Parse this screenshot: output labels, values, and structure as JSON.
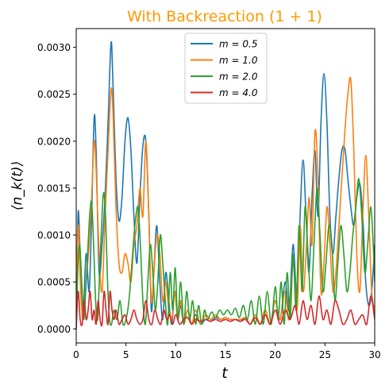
{
  "chart_data": {
    "type": "line",
    "title": "With Backreaction (1 + 1)",
    "title_color": "#ff9900",
    "xlabel": "t",
    "ylabel": "⟨n_k(t)⟩",
    "xlim": [
      0,
      30
    ],
    "ylim": [
      -0.00015,
      0.0032
    ],
    "xticks": [
      0,
      5,
      10,
      15,
      20,
      25,
      30
    ],
    "xtick_labels": [
      "0",
      "5",
      "10",
      "15",
      "20",
      "25",
      "30"
    ],
    "yticks": [
      0.0,
      0.0005,
      0.001,
      0.0015,
      0.002,
      0.0025,
      0.003
    ],
    "ytick_labels": [
      "0.0000",
      "0.0005",
      "0.0010",
      "0.0015",
      "0.0020",
      "0.0025",
      "0.0030"
    ],
    "grid": false,
    "legend_position": "top-center",
    "series": [
      {
        "name": "m = 0.5",
        "color": "#1f77b4",
        "x": [
          0,
          0.2,
          0.45,
          0.7,
          1.0,
          1.3,
          1.55,
          1.8,
          2.0,
          2.3,
          2.6,
          2.9,
          3.2,
          3.5,
          3.7,
          4.0,
          4.3,
          4.6,
          4.9,
          5.2,
          5.5,
          5.8,
          6.1,
          6.4,
          6.7,
          7.0,
          7.3,
          7.55,
          7.8,
          8.1,
          8.4,
          8.7,
          9.0,
          9.3,
          9.6,
          9.9,
          10.2,
          10.5,
          10.8,
          11.2,
          11.6,
          12.0,
          12.5,
          13.0,
          13.5,
          14.0,
          14.5,
          15.0,
          15.5,
          16.0,
          16.5,
          17.0,
          17.5,
          18.0,
          18.5,
          19.0,
          19.5,
          20.0,
          20.5,
          21.0,
          21.4,
          21.8,
          22.2,
          22.5,
          22.8,
          23.1,
          23.4,
          23.7,
          24.0,
          24.3,
          24.6,
          24.9,
          25.2,
          25.5,
          25.8,
          26.1,
          26.4,
          26.7,
          27.0,
          27.3,
          27.6,
          27.9,
          28.2,
          28.5,
          28.8,
          29.1,
          29.4,
          29.7,
          30.0
        ],
        "y": [
          0.0,
          0.00125,
          0.0006,
          0.0002,
          0.0008,
          0.0004,
          0.0012,
          0.00225,
          0.0019,
          0.0006,
          0.0009,
          0.0014,
          0.0022,
          0.00305,
          0.0026,
          0.0016,
          0.00115,
          0.0014,
          0.002,
          0.00225,
          0.0019,
          0.0012,
          0.0007,
          0.0014,
          0.00195,
          0.002,
          0.0012,
          0.0002,
          0.0006,
          0.0011,
          0.0005,
          0.0001,
          0.0006,
          0.0003,
          5e-05,
          0.0004,
          0.0001,
          0.00025,
          5e-05,
          0.0002,
          5e-05,
          0.00015,
          5e-05,
          0.0001,
          8e-05,
          0.00012,
          0.0001,
          0.00012,
          0.0001,
          0.0001,
          8e-05,
          0.00012,
          5e-05,
          0.00015,
          5e-05,
          0.0002,
          5e-05,
          0.0003,
          0.0001,
          0.0005,
          0.0002,
          0.0009,
          0.0003,
          0.0012,
          0.0018,
          0.0012,
          0.0006,
          0.0014,
          0.0019,
          0.0012,
          0.0022,
          0.00272,
          0.0022,
          0.0012,
          0.0008,
          0.0012,
          0.0016,
          0.0019,
          0.00192,
          0.0016,
          0.0013,
          0.0011,
          0.0014,
          0.00155,
          0.0012,
          0.0005,
          0.00025,
          0.0004,
          0.0009
        ]
      },
      {
        "name": "m = 1.0",
        "color": "#ff7f0e",
        "x": [
          0,
          0.2,
          0.45,
          0.7,
          1.0,
          1.3,
          1.55,
          1.8,
          2.0,
          2.3,
          2.6,
          2.9,
          3.2,
          3.5,
          3.7,
          4.0,
          4.3,
          4.6,
          4.9,
          5.2,
          5.5,
          5.8,
          6.1,
          6.4,
          6.7,
          7.0,
          7.3,
          7.55,
          7.8,
          8.1,
          8.4,
          8.7,
          9.0,
          9.3,
          9.6,
          9.9,
          10.2,
          10.5,
          10.8,
          11.2,
          11.6,
          12.0,
          12.5,
          13.0,
          13.5,
          14.0,
          14.5,
          15.0,
          15.5,
          16.0,
          16.5,
          17.0,
          17.5,
          18.0,
          18.5,
          19.0,
          19.5,
          20.0,
          20.5,
          21.0,
          21.4,
          21.8,
          22.2,
          22.5,
          22.8,
          23.1,
          23.4,
          23.7,
          24.0,
          24.3,
          24.6,
          24.9,
          25.2,
          25.5,
          25.8,
          26.1,
          26.4,
          26.7,
          27.0,
          27.3,
          27.6,
          27.9,
          28.2,
          28.5,
          28.8,
          29.1,
          29.4,
          29.7,
          30.0
        ],
        "y": [
          0.0,
          0.0011,
          0.0004,
          0.0001,
          0.0005,
          0.0009,
          0.0014,
          0.002,
          0.0017,
          0.0008,
          0.0004,
          0.0012,
          0.0019,
          0.00255,
          0.0023,
          0.0013,
          0.0007,
          0.0006,
          0.0008,
          0.0007,
          0.0005,
          0.0009,
          0.0011,
          0.0015,
          0.0012,
          0.002,
          0.0012,
          0.0003,
          0.0006,
          0.001,
          0.0008,
          0.0003,
          0.0005,
          0.0002,
          0.0001,
          0.0004,
          0.0001,
          0.0003,
          5e-05,
          0.0002,
          5e-05,
          0.0002,
          5e-05,
          0.00015,
          0.0001,
          0.00015,
          0.0001,
          0.00012,
          0.0001,
          0.0001,
          0.0001,
          0.00012,
          5e-05,
          0.00015,
          5e-05,
          0.0002,
          5e-05,
          0.0003,
          0.0001,
          0.0004,
          0.0001,
          0.0007,
          0.0002,
          0.0011,
          0.0004,
          0.0008,
          0.0014,
          0.0009,
          0.0021,
          0.0016,
          0.0004,
          0.0007,
          0.0013,
          0.0009,
          0.0004,
          0.0006,
          0.0011,
          0.0016,
          0.0021,
          0.0025,
          0.00265,
          0.0019,
          0.0008,
          0.0004,
          0.0012,
          0.00185,
          0.0012,
          0.0004,
          0.0002
        ]
      },
      {
        "name": "m = 2.0",
        "color": "#2ca02c",
        "x": [
          0,
          0.15,
          0.35,
          0.55,
          0.75,
          0.95,
          1.15,
          1.35,
          1.55,
          1.75,
          1.95,
          2.15,
          2.35,
          2.55,
          2.75,
          2.95,
          3.15,
          3.35,
          3.55,
          3.8,
          4.1,
          4.4,
          4.7,
          5.0,
          5.3,
          5.6,
          5.9,
          6.2,
          6.45,
          6.7,
          6.95,
          7.2,
          7.45,
          7.7,
          7.95,
          8.2,
          8.45,
          8.7,
          8.95,
          9.2,
          9.45,
          9.7,
          9.95,
          10.2,
          10.5,
          10.8,
          11.1,
          11.4,
          11.7,
          12.0,
          12.3,
          12.6,
          12.9,
          13.2,
          13.6,
          14.0,
          14.4,
          14.8,
          15.2,
          15.6,
          16.0,
          16.4,
          16.8,
          17.2,
          17.6,
          18.0,
          18.4,
          18.8,
          19.2,
          19.6,
          20.0,
          20.3,
          20.6,
          20.9,
          21.2,
          21.5,
          21.8,
          22.1,
          22.4,
          22.7,
          23.0,
          23.3,
          23.6,
          23.9,
          24.2,
          24.5,
          24.8,
          25.1,
          25.4,
          25.7,
          26.0,
          26.3,
          26.6,
          26.9,
          27.2,
          27.5,
          27.8,
          28.1,
          28.4,
          28.7,
          29.0,
          29.3,
          29.6,
          29.85,
          30.0
        ],
        "y": [
          0.0,
          0.0006,
          0.0009,
          0.0005,
          0.0001,
          0.0004,
          0.0008,
          0.0012,
          0.00135,
          0.0009,
          0.0003,
          0.0001,
          0.0006,
          0.0011,
          0.00145,
          0.0012,
          0.0005,
          0.0001,
          5e-05,
          0.0002,
          0.0001,
          0.0003,
          5e-05,
          0.0001,
          0.0003,
          0.0007,
          0.0011,
          0.0013,
          0.0009,
          0.0003,
          5e-05,
          0.0005,
          0.0009,
          0.0006,
          0.0002,
          0.0005,
          0.001,
          0.0007,
          0.0003,
          5e-05,
          0.0006,
          0.0002,
          0.00065,
          0.0001,
          0.0005,
          5e-05,
          0.0004,
          0.0001,
          0.0003,
          5e-05,
          0.00025,
          5e-05,
          0.0002,
          0.0001,
          0.00018,
          0.00012,
          0.0002,
          0.00015,
          0.0002,
          0.00015,
          0.00022,
          0.00012,
          0.00025,
          0.0001,
          0.0003,
          5e-05,
          0.00035,
          5e-05,
          0.0004,
          5e-05,
          0.00045,
          0.0001,
          0.0005,
          5e-05,
          0.0006,
          0.0001,
          0.0008,
          0.0002,
          0.0011,
          0.0004,
          0.0013,
          0.0008,
          0.0003,
          0.0009,
          0.0015,
          0.001,
          0.0004,
          0.0007,
          0.0011,
          0.0009,
          0.0003,
          0.0007,
          0.0011,
          0.0008,
          0.0004,
          0.0006,
          0.001,
          0.0013,
          0.0016,
          0.0012,
          0.0006,
          0.0009,
          0.0013,
          0.0009,
          0.0005
        ]
      },
      {
        "name": "m = 4.0",
        "color": "#d62728",
        "x": [
          0,
          0.2,
          0.4,
          0.6,
          0.8,
          1.0,
          1.2,
          1.4,
          1.6,
          1.8,
          2.0,
          2.2,
          2.4,
          2.6,
          2.8,
          3.0,
          3.2,
          3.4,
          3.6,
          3.8,
          4.0,
          4.3,
          4.6,
          4.9,
          5.2,
          5.5,
          5.8,
          6.1,
          6.4,
          6.7,
          7.0,
          7.3,
          7.6,
          7.9,
          8.2,
          8.5,
          8.8,
          9.1,
          9.4,
          9.7,
          10.0,
          10.4,
          10.8,
          11.2,
          11.6,
          12.0,
          12.5,
          13.0,
          13.5,
          14.0,
          14.5,
          15.0,
          15.5,
          16.0,
          16.5,
          17.0,
          17.5,
          18.0,
          18.5,
          19.0,
          19.5,
          20.0,
          20.5,
          21.0,
          21.5,
          22.0,
          22.4,
          22.8,
          23.2,
          23.6,
          24.0,
          24.4,
          24.8,
          25.2,
          25.6,
          26.0,
          26.4,
          26.8,
          27.2,
          27.6,
          28.0,
          28.4,
          28.8,
          29.2,
          29.6,
          30.0
        ],
        "y": [
          0.0,
          0.0004,
          0.0001,
          5e-05,
          0.0003,
          0.0001,
          0.0002,
          0.0004,
          0.0001,
          0.0002,
          5e-05,
          0.0003,
          0.0001,
          5e-05,
          0.0004,
          0.0002,
          5e-05,
          0.0004,
          0.0002,
          0.0001,
          0.0002,
          5e-05,
          0.0001,
          0.00015,
          5e-05,
          0.0001,
          0.0002,
          0.0001,
          5e-05,
          0.0001,
          0.0003,
          0.0001,
          5e-05,
          0.0002,
          0.0001,
          5e-05,
          0.0002,
          0.0001,
          0.00015,
          5e-05,
          0.00015,
          5e-05,
          0.0001,
          0.00012,
          5e-05,
          0.0001,
          8e-05,
          0.0001,
          8e-05,
          0.0001,
          8e-05,
          0.0001,
          8e-05,
          0.0001,
          8e-05,
          0.0001,
          5e-05,
          0.00012,
          5e-05,
          0.00015,
          5e-05,
          0.0002,
          5e-05,
          0.0002,
          0.0001,
          0.00025,
          5e-05,
          0.0003,
          0.0001,
          0.00025,
          5e-05,
          0.00035,
          0.0001,
          0.0002,
          5e-05,
          0.0003,
          0.0002,
          5e-05,
          0.0001,
          0.0002,
          5e-05,
          0.0001,
          0.00015,
          5e-05,
          0.00035,
          0.0001
        ]
      }
    ]
  }
}
